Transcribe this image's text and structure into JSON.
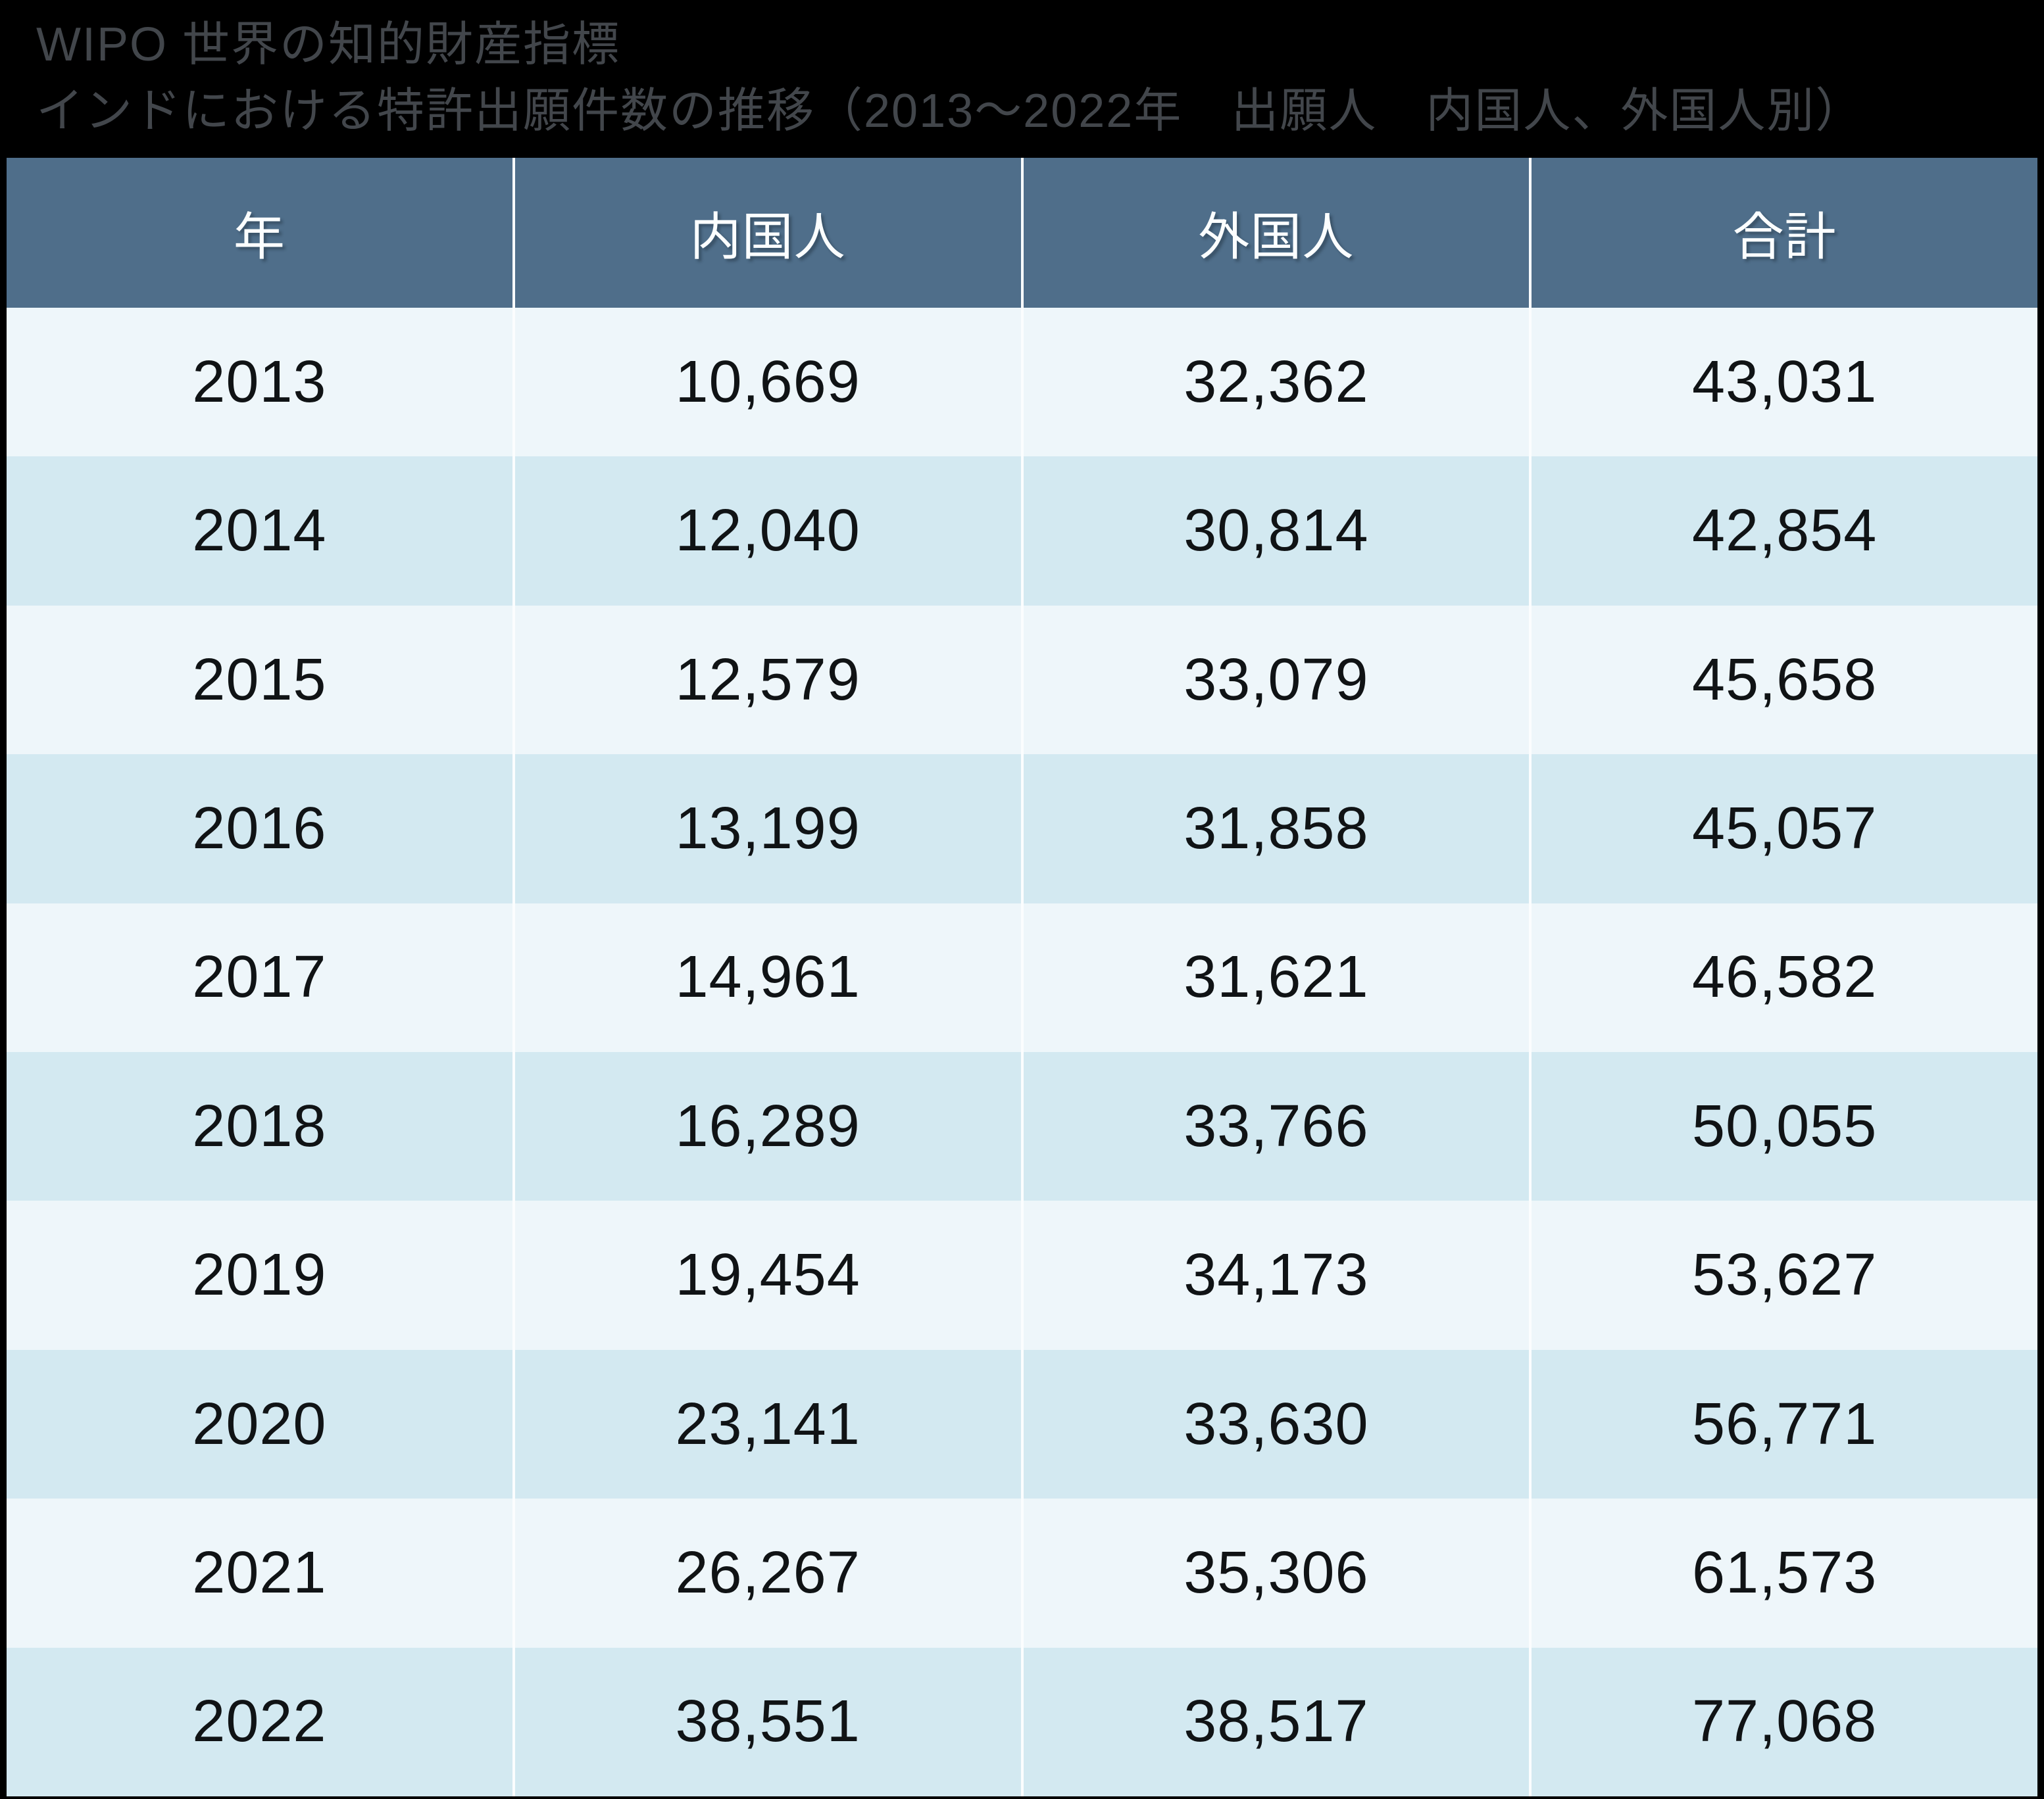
{
  "title": {
    "line1": "WIPO 世界の知的財産指標",
    "line2": "インドにおける特許出願件数の推移（2013～2022年　出願人　内国人、外国人別）"
  },
  "table": {
    "headers": [
      "年",
      "内国人",
      "外国人",
      "合計"
    ],
    "rows": [
      [
        "2013",
        "10,669",
        "32,362",
        "43,031"
      ],
      [
        "2014",
        "12,040",
        "30,814",
        "42,854"
      ],
      [
        "2015",
        "12,579",
        "33,079",
        "45,658"
      ],
      [
        "2016",
        "13,199",
        "31,858",
        "45,057"
      ],
      [
        "2017",
        "14,961",
        "31,621",
        "46,582"
      ],
      [
        "2018",
        "16,289",
        "33,766",
        "50,055"
      ],
      [
        "2019",
        "19,454",
        "34,173",
        "53,627"
      ],
      [
        "2020",
        "23,141",
        "33,630",
        "56,771"
      ],
      [
        "2021",
        "26,267",
        "35,306",
        "61,573"
      ],
      [
        "2022",
        "38,551",
        "38,517",
        "77,068"
      ]
    ]
  },
  "colors": {
    "page_background": "#000000",
    "title_text": "#42464b",
    "header_background": "#4f6e8a",
    "header_text": "#fbfeff",
    "row_stripe_light": "#eef6fa",
    "row_stripe_dark": "#d3e9f1",
    "cell_text": "#101315",
    "column_divider": "#fbfdfe"
  },
  "chart_data": {
    "type": "table",
    "title": "WIPO 世界の知的財産指標",
    "subtitle": "インドにおける特許出願件数の推移（2013～2022年　出願人　内国人、外国人別）",
    "columns": [
      "年",
      "内国人",
      "外国人",
      "合計"
    ],
    "categories": [
      "2013",
      "2014",
      "2015",
      "2016",
      "2017",
      "2018",
      "2019",
      "2020",
      "2021",
      "2022"
    ],
    "series": [
      {
        "name": "内国人",
        "values": [
          10669,
          12040,
          12579,
          13199,
          14961,
          16289,
          19454,
          23141,
          26267,
          38551
        ]
      },
      {
        "name": "外国人",
        "values": [
          32362,
          30814,
          33079,
          31858,
          31621,
          33766,
          34173,
          33630,
          35306,
          38517
        ]
      },
      {
        "name": "合計",
        "values": [
          43031,
          42854,
          45658,
          45057,
          46582,
          50055,
          53627,
          56771,
          61573,
          77068
        ]
      }
    ]
  }
}
